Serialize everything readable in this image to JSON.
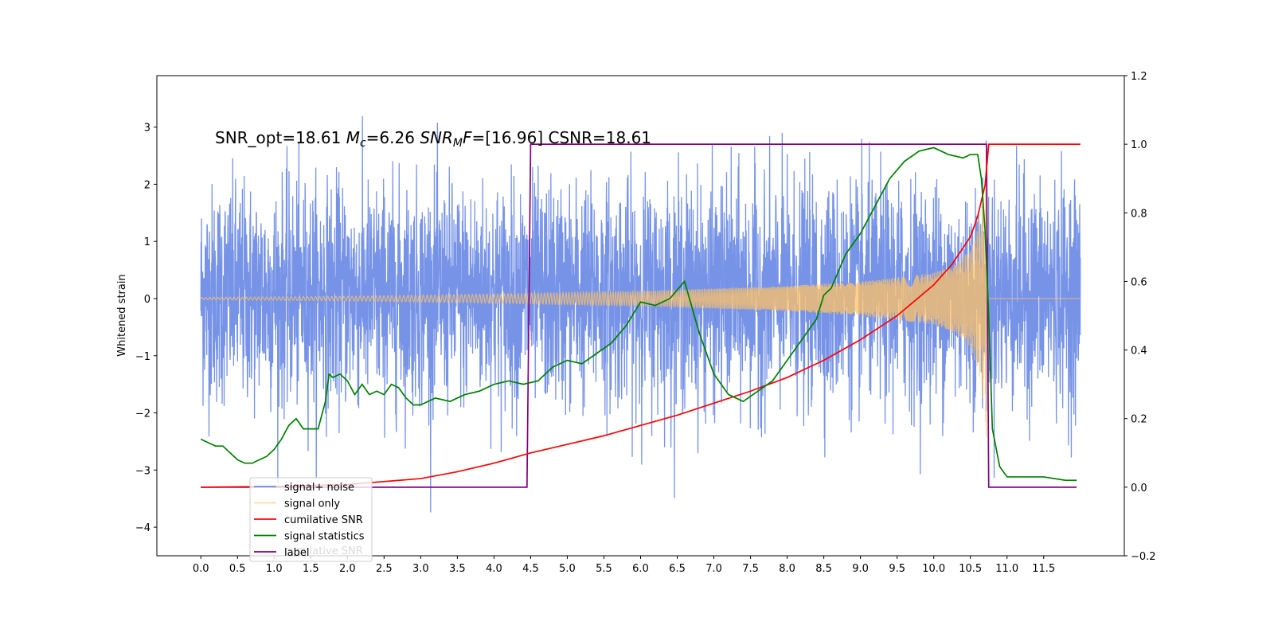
{
  "chart_data": {
    "type": "line",
    "ylabel": "Whitened strain",
    "annotation": "SNR_opt=18.61 M_c=6.26    SNR_MF=[16.96] CSNR=18.61",
    "annotation_parts": {
      "snr_opt": "SNR_opt=18.61",
      "mc_sym": "M",
      "mc_sub": "c",
      "mc_val": "=6.26",
      "snrmf_sym": "SNR",
      "snrmf_sub": "M",
      "snrmf_F": "F",
      "snrmf_val": "=[16.96]",
      "csnr": "CSNR=18.61"
    },
    "xlim": [
      -0.6,
      12.6
    ],
    "ylim_left": [
      -4.5,
      3.9
    ],
    "ylim_right": [
      -0.2,
      1.2
    ],
    "x_ticks": [
      "0.0",
      "0.5",
      "1.0",
      "1.5",
      "2.0",
      "2.5",
      "3.0",
      "3.5",
      "4.0",
      "4.5",
      "5.0",
      "5.5",
      "6.0",
      "6.5",
      "7.0",
      "7.5",
      "8.0",
      "8.5",
      "9.0",
      "9.5",
      "10.0",
      "10.5",
      "11.0",
      "11.5"
    ],
    "y_ticks_left": [
      "−4",
      "−3",
      "−2",
      "−1",
      "0",
      "1",
      "2",
      "3"
    ],
    "y_ticks_right": [
      "−0.2",
      "0.0",
      "0.2",
      "0.4",
      "0.6",
      "0.8",
      "1.0",
      "1.2"
    ],
    "legend": {
      "placement": "lower-left",
      "entries": [
        {
          "label": "signal+ noise",
          "color": "#6f8de6"
        },
        {
          "label": "signal only",
          "color": "#ffc266"
        },
        {
          "label": "cumilative SNR",
          "color": "#ff0000"
        },
        {
          "label": "signal statistics",
          "color": "#008000"
        },
        {
          "label": "label",
          "color": "#800080"
        }
      ],
      "overlap_text": "cumilative SNR"
    },
    "series": [
      {
        "name": "signal+ noise",
        "axis": "left",
        "color": "#6f8de6",
        "x_range": [
          0.0,
          12.0
        ],
        "envelope": {
          "typical_min": -2.2,
          "typical_max": 2.4,
          "extreme_min": -4.1,
          "extreme_max": 3.5
        }
      },
      {
        "name": "signal only",
        "axis": "left",
        "color": "#ffc266",
        "chirp": {
          "start": 0.0,
          "end": 10.72
        },
        "amplitude": {
          "x": [
            0.0,
            2.0,
            4.0,
            6.0,
            8.0,
            9.0,
            10.0,
            10.3,
            10.5,
            10.62,
            10.7,
            10.72,
            10.75
          ],
          "y": [
            0.02,
            0.04,
            0.08,
            0.13,
            0.22,
            0.3,
            0.45,
            0.6,
            0.85,
            1.3,
            2.1,
            2.5,
            0.0
          ]
        }
      },
      {
        "name": "cumilative SNR",
        "axis": "right",
        "color": "#ff0000",
        "x": [
          0.0,
          1.0,
          2.0,
          3.0,
          3.5,
          4.0,
          4.5,
          5.0,
          5.5,
          6.0,
          6.5,
          7.0,
          7.5,
          8.0,
          8.5,
          9.0,
          9.5,
          10.0,
          10.25,
          10.5,
          10.6,
          10.7,
          10.73,
          10.75,
          12.0
        ],
        "y": [
          0.0,
          0.002,
          0.008,
          0.025,
          0.045,
          0.07,
          0.1,
          0.125,
          0.15,
          0.18,
          0.21,
          0.245,
          0.28,
          0.32,
          0.37,
          0.43,
          0.5,
          0.59,
          0.65,
          0.73,
          0.79,
          0.88,
          0.95,
          1.0,
          1.0
        ]
      },
      {
        "name": "signal statistics",
        "axis": "right",
        "color": "#008000",
        "x": [
          0.0,
          0.1,
          0.2,
          0.3,
          0.4,
          0.5,
          0.6,
          0.7,
          0.8,
          0.9,
          1.0,
          1.1,
          1.2,
          1.3,
          1.4,
          1.5,
          1.6,
          1.7,
          1.75,
          1.8,
          1.9,
          2.0,
          2.1,
          2.2,
          2.3,
          2.4,
          2.5,
          2.6,
          2.7,
          2.8,
          2.9,
          3.0,
          3.2,
          3.4,
          3.6,
          3.8,
          4.0,
          4.2,
          4.4,
          4.6,
          4.8,
          5.0,
          5.2,
          5.4,
          5.6,
          5.8,
          6.0,
          6.2,
          6.4,
          6.6,
          6.8,
          7.0,
          7.2,
          7.4,
          7.6,
          7.8,
          8.0,
          8.2,
          8.4,
          8.5,
          8.6,
          8.8,
          9.0,
          9.2,
          9.4,
          9.6,
          9.8,
          10.0,
          10.2,
          10.4,
          10.5,
          10.6,
          10.65,
          10.7,
          10.75,
          10.8,
          10.9,
          11.0,
          11.2,
          11.5,
          11.8,
          11.95
        ],
        "y": [
          0.14,
          0.13,
          0.12,
          0.12,
          0.1,
          0.08,
          0.07,
          0.07,
          0.08,
          0.09,
          0.11,
          0.14,
          0.18,
          0.2,
          0.17,
          0.17,
          0.17,
          0.25,
          0.33,
          0.32,
          0.33,
          0.31,
          0.27,
          0.3,
          0.27,
          0.28,
          0.27,
          0.3,
          0.29,
          0.26,
          0.24,
          0.24,
          0.26,
          0.25,
          0.27,
          0.28,
          0.3,
          0.31,
          0.3,
          0.31,
          0.35,
          0.37,
          0.36,
          0.39,
          0.42,
          0.47,
          0.54,
          0.53,
          0.55,
          0.6,
          0.45,
          0.33,
          0.27,
          0.25,
          0.28,
          0.31,
          0.37,
          0.43,
          0.49,
          0.56,
          0.58,
          0.68,
          0.74,
          0.82,
          0.9,
          0.95,
          0.98,
          0.99,
          0.97,
          0.96,
          0.97,
          0.97,
          0.9,
          0.75,
          0.5,
          0.17,
          0.06,
          0.03,
          0.03,
          0.03,
          0.02,
          0.02
        ]
      },
      {
        "name": "label",
        "axis": "right",
        "color": "#800080",
        "x": [
          0.0,
          4.45,
          4.5,
          10.72,
          10.75,
          11.95
        ],
        "y": [
          0.0,
          0.0,
          1.0,
          1.0,
          0.0,
          0.0
        ]
      }
    ]
  }
}
